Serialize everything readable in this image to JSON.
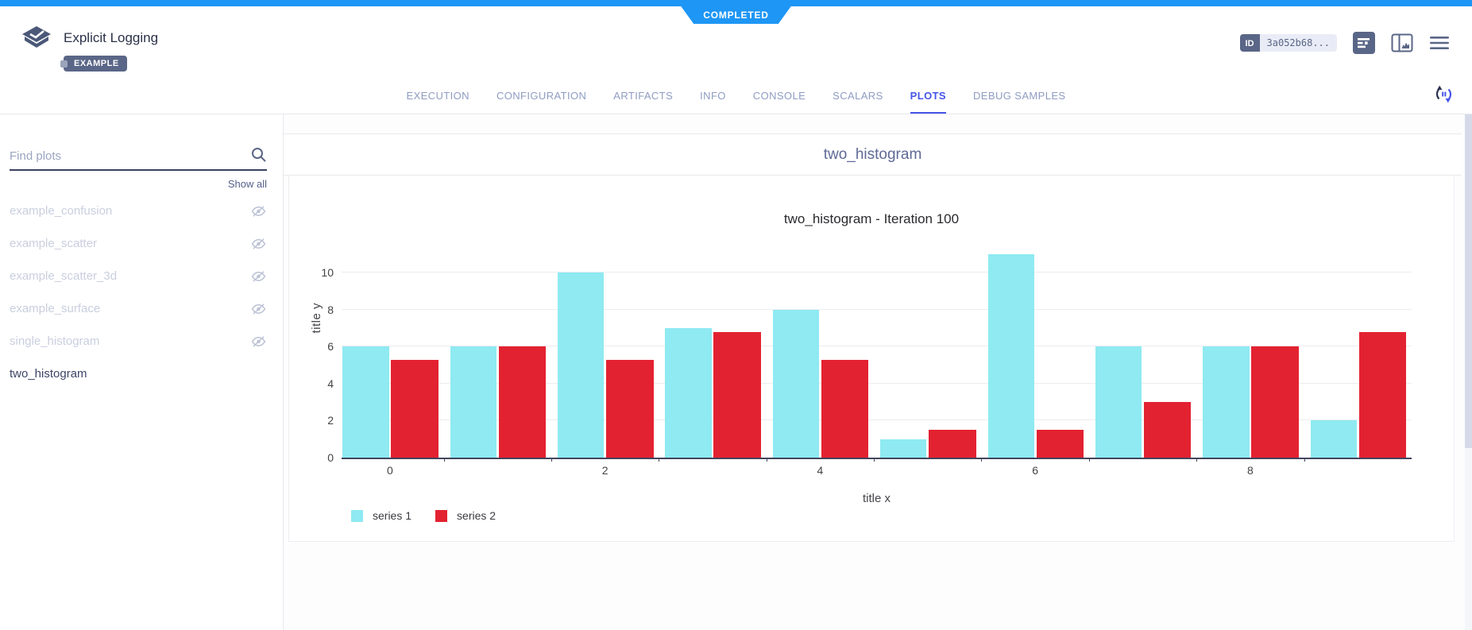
{
  "ribbon": {
    "status": "COMPLETED",
    "color": "#1e96f5"
  },
  "header": {
    "app_title": "Explicit Logging",
    "tag": "EXAMPLE",
    "id_label": "ID",
    "id_value": "3a052b68...",
    "accent_blue": "#4654e8",
    "slate": "#5a6687"
  },
  "tabs": {
    "items": [
      "EXECUTION",
      "CONFIGURATION",
      "ARTIFACTS",
      "INFO",
      "CONSOLE",
      "SCALARS",
      "PLOTS",
      "DEBUG SAMPLES"
    ],
    "active": "PLOTS"
  },
  "sidebar": {
    "search_placeholder": "Find plots",
    "show_all_label": "Show all",
    "plots": [
      {
        "label": "example_confusion",
        "visible": false
      },
      {
        "label": "example_scatter",
        "visible": false
      },
      {
        "label": "example_scatter_3d",
        "visible": false
      },
      {
        "label": "example_surface",
        "visible": false
      },
      {
        "label": "single_histogram",
        "visible": false
      },
      {
        "label": "two_histogram",
        "visible": true
      }
    ]
  },
  "main": {
    "panel_title": "two_histogram"
  },
  "chart_data": {
    "type": "bar",
    "title": "two_histogram - Iteration 100",
    "xlabel": "title x",
    "ylabel": "title y",
    "x": [
      0,
      1,
      2,
      3,
      4,
      5,
      6,
      7,
      8,
      9
    ],
    "series": [
      {
        "name": "series 1",
        "color": "#8FEAF2",
        "values": [
          6,
          6,
          10,
          7,
          8,
          1,
          11,
          6,
          6,
          2
        ]
      },
      {
        "name": "series 2",
        "color": "#E32231",
        "values": [
          5.3,
          6,
          5.3,
          6.8,
          5.3,
          1.5,
          1.5,
          3,
          6,
          6.8
        ]
      }
    ],
    "xticks": [
      0,
      2,
      4,
      6,
      8
    ],
    "yticks": [
      0,
      2,
      4,
      6,
      8,
      10
    ],
    "xlim": [
      -0.45,
      9.5
    ],
    "ylim": [
      0,
      11.05
    ],
    "grid": true,
    "legend_position": "bottom-left"
  }
}
